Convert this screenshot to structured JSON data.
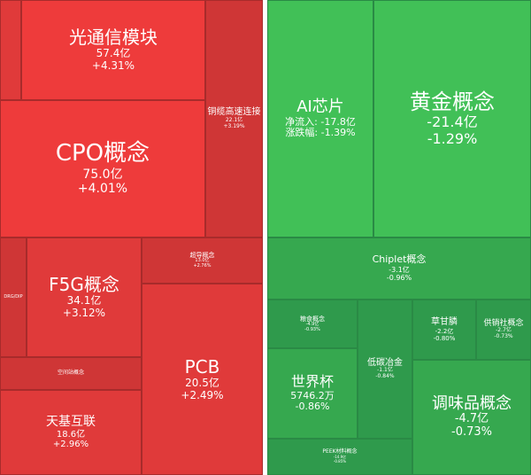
{
  "chart_data": {
    "type": "treemap",
    "series": [
      {
        "name": "",
        "items": [
          {
            "id": "pos-tiny",
            "name": "",
            "value": "",
            "change": ""
          },
          {
            "id": "optical-comm",
            "name": "光通信模块",
            "value": "57.4亿",
            "change": "+4.31%"
          },
          {
            "id": "copper-cable",
            "name": "铜缆高速连接",
            "value": "22.1亿",
            "change": "+3.19%"
          },
          {
            "id": "cpo",
            "name": "CPO概念",
            "value": "75.0亿",
            "change": "+4.01%"
          },
          {
            "id": "drg-dip",
            "name": "DRG/DIP",
            "value": "",
            "change": ""
          },
          {
            "id": "f5g",
            "name": "F5G概念",
            "value": "34.1亿",
            "change": "+3.12%"
          },
          {
            "id": "superconductor",
            "name": "超导概念",
            "value": "13.0亿",
            "change": "+2.76%"
          },
          {
            "id": "air-defense",
            "name": "空间站概念",
            "value": "",
            "change": ""
          },
          {
            "id": "pcb",
            "name": "PCB",
            "value": "20.5亿",
            "change": "+2.49%"
          },
          {
            "id": "sky-ground",
            "name": "天基互联",
            "value": "18.6亿",
            "change": "+2.96%"
          }
        ]
      },
      {
        "name": "",
        "items": [
          {
            "id": "ai-chip",
            "name": "AI芯片",
            "value": "净流入: -17.8亿",
            "change": "涨跌幅: -1.39%"
          },
          {
            "id": "gold",
            "name": "黄金概念",
            "value": "-21.4亿",
            "change": "-1.29%"
          },
          {
            "id": "chiplet",
            "name": "Chiplet概念",
            "value": "-3.1亿",
            "change": "-0.96%"
          },
          {
            "id": "grain",
            "name": "粮食概念",
            "value": "-4.9亿",
            "change": "-0.93%"
          },
          {
            "id": "low-carbon",
            "name": "低碳冶金",
            "value": "-1.1亿",
            "change": "-0.84%"
          },
          {
            "id": "glyphosate",
            "name": "草甘膦",
            "value": "-2.2亿",
            "change": "-0.80%"
          },
          {
            "id": "supply-coop",
            "name": "供销社概念",
            "value": "-2.7亿",
            "change": "-0.73%"
          },
          {
            "id": "world-cup",
            "name": "世界杯",
            "value": "5746.2万",
            "change": "-0.86%"
          },
          {
            "id": "seasoning",
            "name": "调味品概念",
            "value": "-4.7亿",
            "change": "-0.73%"
          },
          {
            "id": "peek",
            "name": "PEEK材料概念",
            "value": "-14.9亿",
            "change": "-0.85%"
          }
        ]
      }
    ],
    "colors": {
      "pos_strong": "#ee3b3b",
      "pos_mid": "#e03a3a",
      "pos_weak": "#cf3636",
      "neg_strong": "#41c057",
      "neg_mid": "#36a84f",
      "neg_weak": "#2f9a4c",
      "divider": "#ffffff"
    }
  }
}
